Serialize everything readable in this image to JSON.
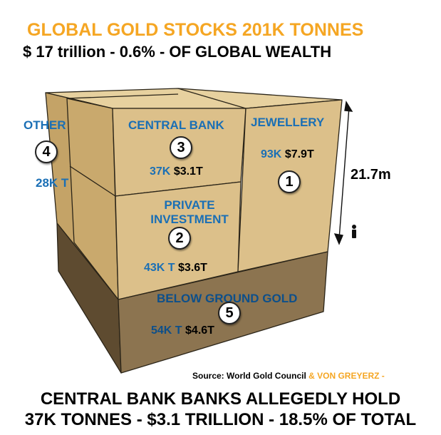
{
  "title": "GLOBAL GOLD STOCKS 201K TONNES",
  "subtitle": "$ 17 trillion - 0.6% - OF GLOBAL WEALTH",
  "segments": {
    "jewellery": {
      "number": "1",
      "label": "JEWELLERY",
      "tonnes": "93K",
      "value": "$7.9T"
    },
    "private": {
      "number": "2",
      "label_line1": "PRIVATE",
      "label_line2": "INVESTMENT",
      "tonnes": "43K T",
      "value": "$3.6T"
    },
    "central": {
      "number": "3",
      "label": "CENTRAL BANK",
      "tonnes": "37K",
      "value": "$3.1T"
    },
    "other": {
      "number": "4",
      "label": "OTHER",
      "tonnes": "28K T"
    },
    "below": {
      "number": "5",
      "label": "BELOW GROUND GOLD",
      "tonnes": "54K T",
      "value": "$4.6T"
    }
  },
  "height_label": "21.7m",
  "source": {
    "prefix": "Source: World Gold Council",
    "highlight": "& VON GREYERZ -"
  },
  "footer": {
    "line1": "CENTRAL BANK BANKS ALLEGEDLY HOLD",
    "line2": "37K TONNES - $3.1 TRILLION - 18.5% OF TOTAL"
  },
  "colors": {
    "title": "#f5a623",
    "label_blue": "#1a6fb5",
    "box_front": "#dcc08a",
    "box_side": "#b8955a",
    "ground_front": "#8c7450",
    "ground_side": "#5e4b30"
  }
}
